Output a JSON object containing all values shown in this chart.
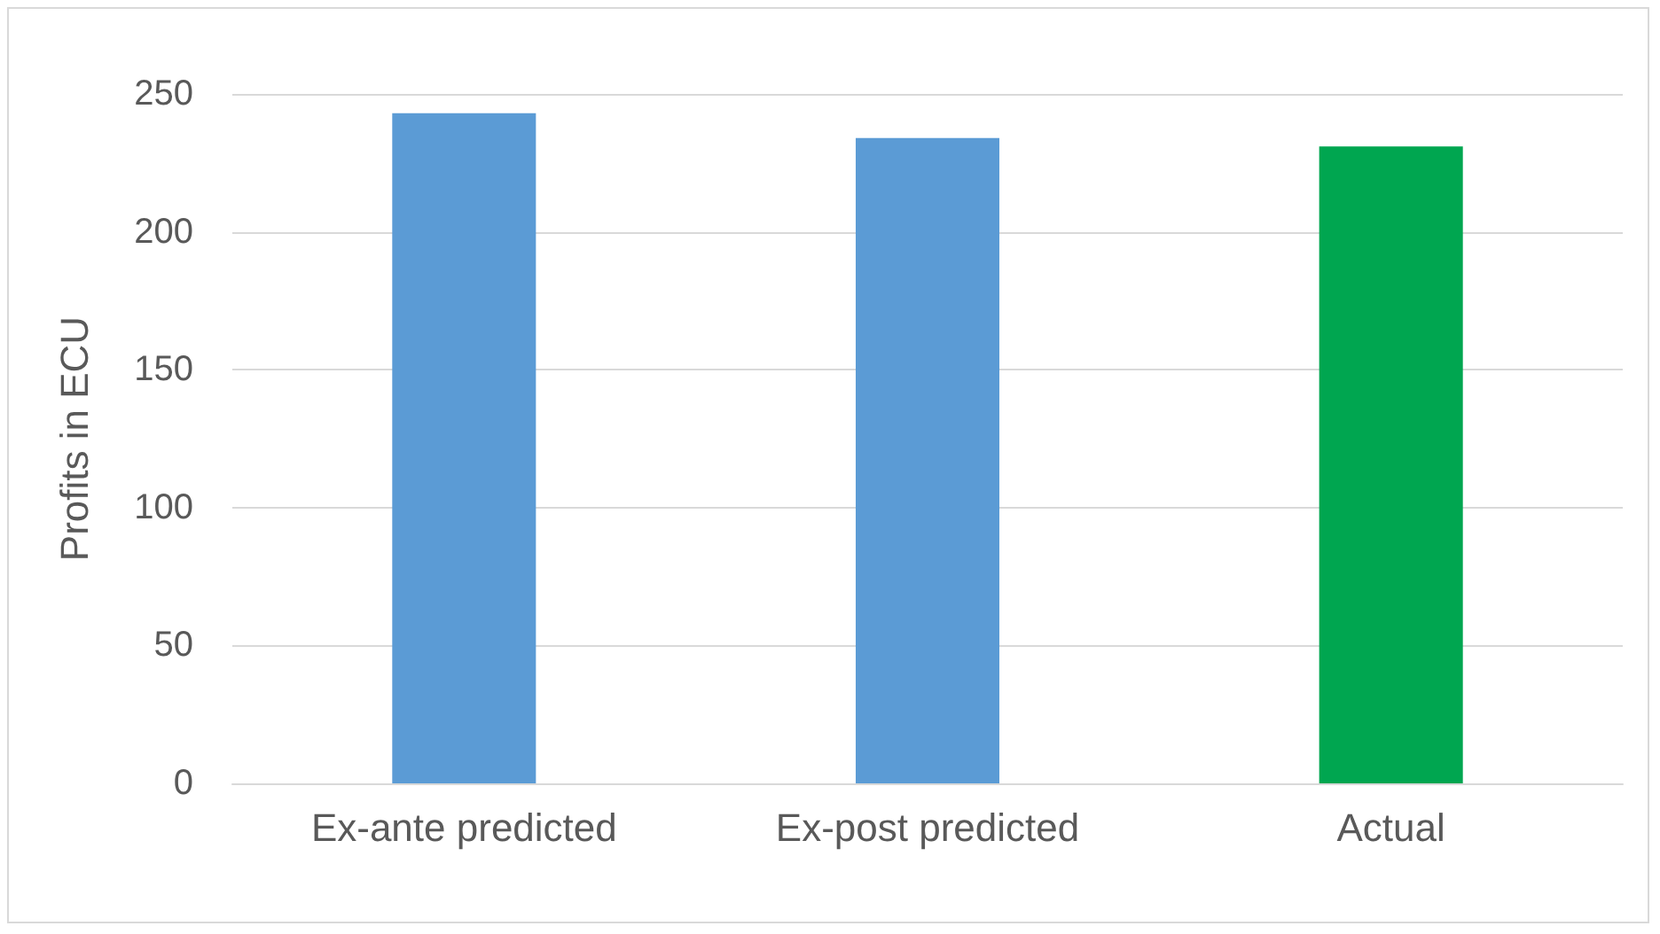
{
  "chart_data": {
    "type": "bar",
    "ylabel": "Profits in ECU",
    "categories": [
      "Ex-ante predicted",
      "Ex-post predicted",
      "Actual"
    ],
    "values": [
      243,
      234,
      231
    ],
    "colors": [
      "#5b9bd5",
      "#5b9bd5",
      "#00a650"
    ],
    "ylim": [
      0,
      250
    ],
    "yticks": [
      0,
      50,
      100,
      150,
      200,
      250
    ],
    "grid": "y"
  }
}
